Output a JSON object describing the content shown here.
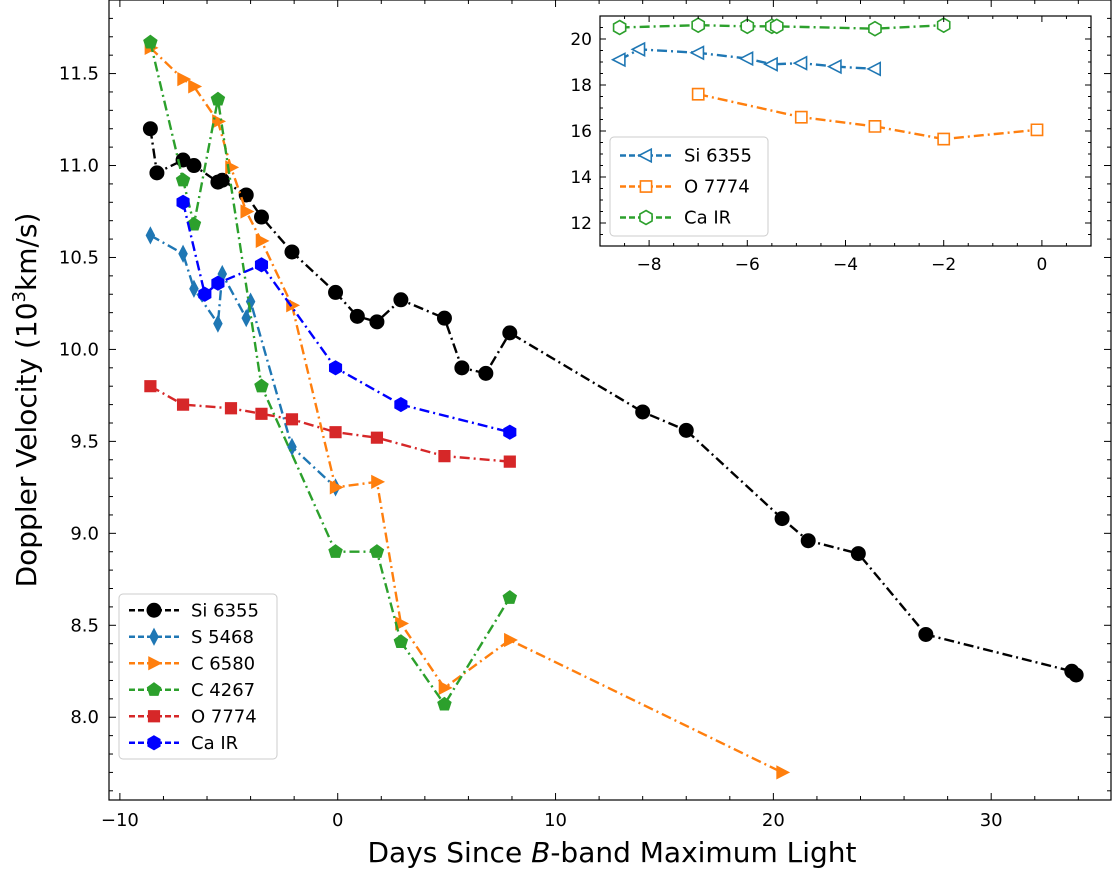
{
  "chart_data": [
    {
      "type": "line",
      "role": "main",
      "xlabel_parts": [
        "Days Since ",
        "B",
        "-band Maximum Light"
      ],
      "ylabel_parts": [
        "Doppler Velocity (10",
        "3",
        "km/s)"
      ],
      "xlim": [
        -10.5,
        35.5
      ],
      "ylim": [
        7.55,
        11.9
      ],
      "xticks": [
        -10,
        0,
        10,
        20,
        30
      ],
      "xtick_labels": [
        "−10",
        "0",
        "10",
        "20",
        "30"
      ],
      "yticks": [
        8.0,
        8.5,
        9.0,
        9.5,
        10.0,
        10.5,
        11.0,
        11.5
      ],
      "ytick_labels": [
        "8.0",
        "8.5",
        "9.0",
        "9.5",
        "10.0",
        "10.5",
        "11.0",
        "11.5"
      ],
      "legend_position": "lower-left",
      "series": [
        {
          "name": "Si 6355",
          "color": "#000000",
          "marker": "circle",
          "filled": true,
          "x": [
            -8.6,
            -8.3,
            -7.1,
            -6.6,
            -5.5,
            -5.3,
            -4.2,
            -3.5,
            -2.1,
            -0.1,
            0.9,
            1.8,
            2.9,
            4.9,
            5.7,
            6.8,
            7.9,
            14.0,
            16.0,
            20.4,
            21.6,
            23.9,
            27.0,
            33.7,
            33.9
          ],
          "y": [
            11.2,
            10.96,
            11.03,
            11.0,
            10.91,
            10.92,
            10.84,
            10.72,
            10.53,
            10.31,
            10.18,
            10.15,
            10.27,
            10.17,
            9.9,
            9.87,
            10.09,
            9.66,
            9.56,
            9.08,
            8.96,
            8.89,
            8.45,
            8.25,
            8.23
          ]
        },
        {
          "name": "S 5468",
          "color": "#1f77b4",
          "marker": "thin_diamond",
          "filled": true,
          "x": [
            -8.6,
            -7.1,
            -6.6,
            -5.5,
            -5.3,
            -4.2,
            -4.0,
            -2.1,
            -0.1
          ],
          "y": [
            10.62,
            10.52,
            10.33,
            10.14,
            10.41,
            10.17,
            10.26,
            9.47,
            9.25
          ]
        },
        {
          "name": "C 6580",
          "color": "#ff7f0e",
          "marker": "triangle_right",
          "filled": true,
          "x": [
            -8.6,
            -7.1,
            -6.6,
            -5.5,
            -4.9,
            -4.2,
            -3.5,
            -2.1,
            -0.1,
            1.8,
            2.9,
            4.9,
            7.9,
            20.4
          ],
          "y": [
            11.64,
            11.47,
            11.43,
            11.24,
            10.99,
            10.75,
            10.59,
            10.24,
            9.25,
            9.28,
            8.51,
            8.16,
            8.42,
            7.7
          ]
        },
        {
          "name": "C 4267",
          "color": "#2ca02c",
          "marker": "pentagon",
          "filled": true,
          "x": [
            -8.6,
            -7.1,
            -6.6,
            -5.5,
            -3.5,
            -0.1,
            1.8,
            2.9,
            4.9,
            7.9
          ],
          "y": [
            11.67,
            10.92,
            10.68,
            11.36,
            9.8,
            8.9,
            8.9,
            8.41,
            8.07,
            8.65
          ]
        },
        {
          "name": "O 7774",
          "color": "#d62728",
          "marker": "square",
          "filled": true,
          "x": [
            -8.6,
            -7.1,
            -4.9,
            -3.5,
            -2.1,
            -0.1,
            1.8,
            4.9,
            7.9
          ],
          "y": [
            9.8,
            9.7,
            9.68,
            9.65,
            9.62,
            9.55,
            9.52,
            9.42,
            9.39
          ]
        },
        {
          "name": "Ca IR",
          "color": "#0000ff",
          "marker": "hexagon",
          "filled": true,
          "x": [
            -7.1,
            -6.1,
            -5.5,
            -3.5,
            -0.1,
            2.9,
            7.9
          ],
          "y": [
            10.8,
            10.3,
            10.36,
            10.46,
            9.9,
            9.7,
            9.55
          ]
        }
      ]
    },
    {
      "type": "line",
      "role": "inset",
      "xlabel": "",
      "ylabel": "",
      "xlim": [
        -9.0,
        1.0
      ],
      "ylim": [
        11.0,
        21.0
      ],
      "xticks": [
        -8,
        -6,
        -4,
        -2,
        0
      ],
      "xtick_labels": [
        "−8",
        "−6",
        "−4",
        "−2",
        "0"
      ],
      "yticks": [
        12,
        14,
        16,
        18,
        20
      ],
      "ytick_labels": [
        "12",
        "14",
        "16",
        "18",
        "20"
      ],
      "legend_position": "lower-left",
      "series": [
        {
          "name": "Si 6355",
          "color": "#1f77b4",
          "marker": "triangle_left",
          "filled": false,
          "x": [
            -8.6,
            -8.2,
            -7.0,
            -6.0,
            -5.5,
            -4.9,
            -4.2,
            -3.4
          ],
          "y": [
            19.1,
            19.55,
            19.4,
            19.15,
            18.9,
            18.95,
            18.8,
            18.7
          ]
        },
        {
          "name": "O 7774",
          "color": "#ff7f0e",
          "marker": "square",
          "filled": false,
          "x": [
            -7.0,
            -4.9,
            -3.4,
            -2.0,
            -0.1
          ],
          "y": [
            17.6,
            16.6,
            16.2,
            15.65,
            16.05
          ]
        },
        {
          "name": "Ca IR",
          "color": "#2ca02c",
          "marker": "hexagon",
          "filled": false,
          "x": [
            -8.6,
            -7.0,
            -6.0,
            -5.5,
            -5.4,
            -3.4,
            -2.0
          ],
          "y": [
            20.5,
            20.6,
            20.55,
            20.55,
            20.55,
            20.45,
            20.6
          ]
        }
      ]
    }
  ]
}
